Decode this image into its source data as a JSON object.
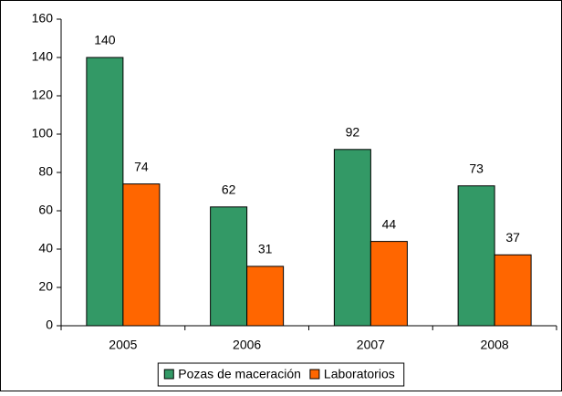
{
  "chart_data": {
    "type": "bar",
    "categories": [
      "2005",
      "2006",
      "2007",
      "2008"
    ],
    "series": [
      {
        "name": "Pozas de maceración",
        "color": "#339966",
        "values": [
          140,
          62,
          92,
          73
        ]
      },
      {
        "name": "Laboratorios",
        "color": "#ff6600",
        "values": [
          74,
          31,
          44,
          37
        ]
      }
    ],
    "ylim": [
      0,
      160
    ],
    "yticks": [
      0,
      20,
      40,
      60,
      80,
      100,
      120,
      140,
      160
    ],
    "legend": "bottom"
  }
}
